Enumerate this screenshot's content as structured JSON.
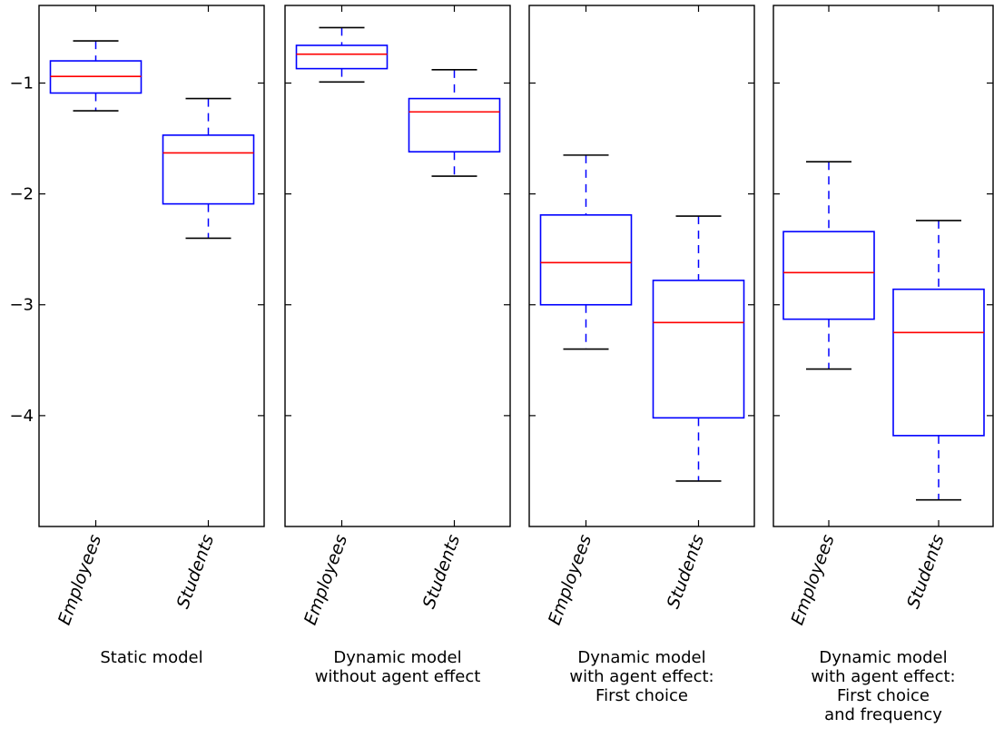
{
  "chart_data": {
    "type": "boxplot",
    "ylim": [
      -5.0,
      -0.3
    ],
    "yticks": [
      -1,
      -2,
      -3,
      -4
    ],
    "ytick_labels": [
      "−1",
      "−2",
      "−3",
      "−4"
    ],
    "categories": [
      "Employees",
      "Students"
    ],
    "colors": {
      "box": "#0000ff",
      "median": "#ff0000",
      "whisker": "#0000ff",
      "cap": "#000000",
      "axis": "#000000"
    },
    "panels": [
      {
        "title_lines": [
          "Static model"
        ],
        "boxes": [
          {
            "category": "Employees",
            "whisker_low": -1.25,
            "q1": -1.09,
            "median": -0.94,
            "q3": -0.8,
            "whisker_high": -0.62
          },
          {
            "category": "Students",
            "whisker_low": -2.4,
            "q1": -2.09,
            "median": -1.63,
            "q3": -1.47,
            "whisker_high": -1.14
          }
        ]
      },
      {
        "title_lines": [
          "Dynamic model",
          "without agent effect"
        ],
        "boxes": [
          {
            "category": "Employees",
            "whisker_low": -0.99,
            "q1": -0.87,
            "median": -0.74,
            "q3": -0.66,
            "whisker_high": -0.5
          },
          {
            "category": "Students",
            "whisker_low": -1.84,
            "q1": -1.62,
            "median": -1.26,
            "q3": -1.14,
            "whisker_high": -0.88
          }
        ]
      },
      {
        "title_lines": [
          "Dynamic model",
          "with agent effect:",
          "First choice"
        ],
        "boxes": [
          {
            "category": "Employees",
            "whisker_low": -3.4,
            "q1": -3.0,
            "median": -2.62,
            "q3": -2.19,
            "whisker_high": -1.65
          },
          {
            "category": "Students",
            "whisker_low": -4.59,
            "q1": -4.02,
            "median": -3.16,
            "q3": -2.78,
            "whisker_high": -2.2
          }
        ]
      },
      {
        "title_lines": [
          "Dynamic model",
          "with agent effect:",
          "First choice",
          "and frequency"
        ],
        "boxes": [
          {
            "category": "Employees",
            "whisker_low": -3.58,
            "q1": -3.13,
            "median": -2.71,
            "q3": -2.34,
            "whisker_high": -1.71
          },
          {
            "category": "Students",
            "whisker_low": -4.76,
            "q1": -4.18,
            "median": -3.25,
            "q3": -2.86,
            "whisker_high": -2.24
          }
        ]
      }
    ]
  }
}
